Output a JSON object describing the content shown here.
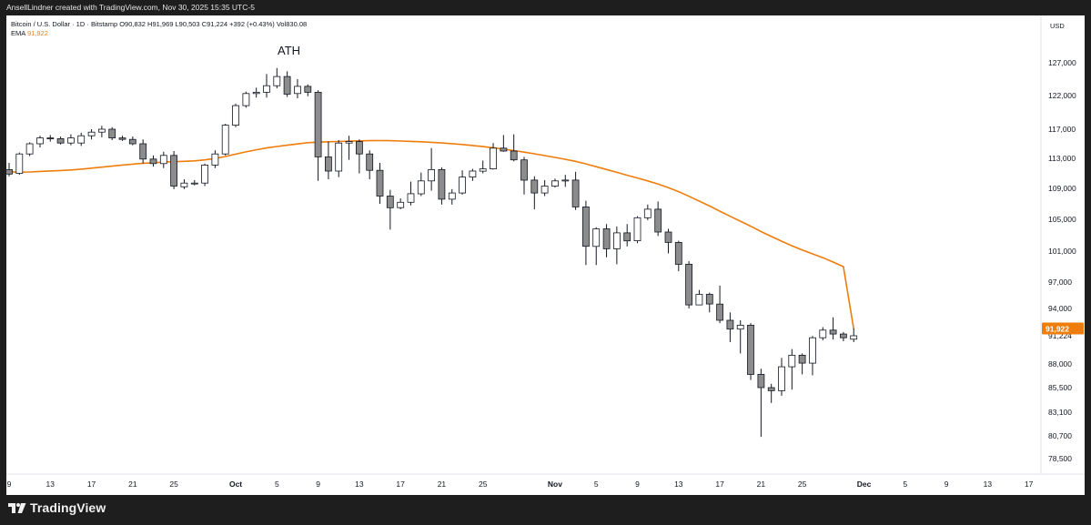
{
  "header": {
    "attribution": "AnsellLindner created with TradingView.com, Nov 30, 2025 15:35 UTC-5"
  },
  "legend": {
    "symbol_line": "Bitcoin / U.S. Dollar · 1D · Bitstamp  O90,832  H91,969  L90,503  C91,224  +392 (+0.43%)  Vol830.08",
    "ema_label": "EMA",
    "ema_value": "91,922"
  },
  "annotation": {
    "ath": "ATH"
  },
  "footer": {
    "logo_text": "TradingView"
  },
  "colors": {
    "bull_body": "#ffffff",
    "bear_body": "#8c8c8c",
    "candle_border": "#131722",
    "ema_line": "#ef7d0c",
    "last_price_badge": "#131722"
  },
  "chart_data": {
    "type": "candlestick",
    "title": "Bitcoin / U.S. Dollar · 1D · Bitstamp",
    "currency_label": "USD",
    "y_ticks": [
      127000,
      122000,
      117000,
      113000,
      109000,
      105000,
      101000,
      97000,
      94000,
      91224,
      88000,
      85500,
      83100,
      80700,
      78500
    ],
    "y_tick_labels": [
      "127,000",
      "122,000",
      "117,000",
      "113,000",
      "109,000",
      "105,000",
      "101,000",
      "97,000",
      "94,000",
      "91,224",
      "88,000",
      "85,500",
      "83,100",
      "80,700",
      "78,500"
    ],
    "x_tick_labels": [
      {
        "label": "9",
        "day": 0
      },
      {
        "label": "13",
        "day": 4
      },
      {
        "label": "17",
        "day": 8
      },
      {
        "label": "21",
        "day": 12
      },
      {
        "label": "25",
        "day": 16
      },
      {
        "label": "Oct",
        "day": 22,
        "bold": true
      },
      {
        "label": "5",
        "day": 26
      },
      {
        "label": "9",
        "day": 30
      },
      {
        "label": "13",
        "day": 34
      },
      {
        "label": "17",
        "day": 38
      },
      {
        "label": "21",
        "day": 42
      },
      {
        "label": "25",
        "day": 46
      },
      {
        "label": "Nov",
        "day": 53,
        "bold": true
      },
      {
        "label": "5",
        "day": 57
      },
      {
        "label": "9",
        "day": 61
      },
      {
        "label": "13",
        "day": 65
      },
      {
        "label": "17",
        "day": 69
      },
      {
        "label": "21",
        "day": 73
      },
      {
        "label": "25",
        "day": 77
      },
      {
        "label": "Dec",
        "day": 83,
        "bold": true
      },
      {
        "label": "5",
        "day": 87
      },
      {
        "label": "9",
        "day": 91
      },
      {
        "label": "13",
        "day": 95
      },
      {
        "label": "17",
        "day": 99
      }
    ],
    "last_close": 91224,
    "ema_last": 91922,
    "ema_last_label": "91,922",
    "ohlc": [
      [
        111500,
        112400,
        110600,
        110900
      ],
      [
        111000,
        113800,
        110800,
        113600
      ],
      [
        113600,
        115200,
        113300,
        115000
      ],
      [
        115000,
        116100,
        114500,
        115800
      ],
      [
        115800,
        116200,
        115300,
        115700
      ],
      [
        115700,
        116000,
        114900,
        115100
      ],
      [
        115100,
        116300,
        114800,
        115800
      ],
      [
        115100,
        116500,
        114700,
        116100
      ],
      [
        116100,
        117000,
        115600,
        116600
      ],
      [
        116600,
        117500,
        115900,
        117000
      ],
      [
        117000,
        117300,
        115500,
        115800
      ],
      [
        115800,
        116100,
        115400,
        115600
      ],
      [
        115600,
        116000,
        114800,
        115000
      ],
      [
        115000,
        115600,
        112300,
        112900
      ],
      [
        112900,
        113400,
        111900,
        112300
      ],
      [
        112300,
        113900,
        111700,
        113400
      ],
      [
        113400,
        114000,
        108900,
        109300
      ],
      [
        109200,
        110200,
        108900,
        109700
      ],
      [
        109700,
        110100,
        109400,
        109700
      ],
      [
        109700,
        112300,
        109300,
        112100
      ],
      [
        112100,
        114100,
        111700,
        113600
      ],
      [
        113600,
        117800,
        113400,
        117600
      ],
      [
        117600,
        120800,
        117300,
        120500
      ],
      [
        120500,
        122600,
        120200,
        122300
      ],
      [
        122300,
        123200,
        121700,
        122500
      ],
      [
        122500,
        125300,
        121700,
        123500
      ],
      [
        123500,
        126200,
        123100,
        124900
      ],
      [
        124900,
        125700,
        121800,
        122200
      ],
      [
        122300,
        124500,
        121600,
        123400
      ],
      [
        123400,
        123700,
        121900,
        122500
      ],
      [
        122500,
        122800,
        110000,
        113200
      ],
      [
        113200,
        115300,
        110200,
        111300
      ],
      [
        111300,
        115500,
        110500,
        115100
      ],
      [
        115100,
        116100,
        112800,
        115300
      ],
      [
        115300,
        115600,
        111000,
        113600
      ],
      [
        113600,
        114100,
        110200,
        111400
      ],
      [
        111400,
        112400,
        107000,
        108000
      ],
      [
        108000,
        108800,
        103700,
        106500
      ],
      [
        106500,
        107700,
        106300,
        107200
      ],
      [
        107200,
        109900,
        106800,
        108300
      ],
      [
        108300,
        111100,
        108000,
        110000
      ],
      [
        110000,
        114400,
        108700,
        111500
      ],
      [
        111500,
        111800,
        106900,
        107600
      ],
      [
        107600,
        108900,
        106900,
        108400
      ],
      [
        108400,
        111400,
        108200,
        110500
      ],
      [
        110500,
        111600,
        110000,
        111300
      ],
      [
        111300,
        112700,
        111000,
        111600
      ],
      [
        111600,
        115100,
        111500,
        114400
      ],
      [
        114400,
        116200,
        113900,
        114000
      ],
      [
        114000,
        116300,
        112600,
        112800
      ],
      [
        112800,
        113200,
        108200,
        110100
      ],
      [
        110100,
        110600,
        106300,
        108400
      ],
      [
        108400,
        110100,
        108000,
        109300
      ],
      [
        109300,
        110300,
        109100,
        110000
      ],
      [
        110000,
        110800,
        109200,
        110100
      ],
      [
        110100,
        111200,
        106200,
        106600
      ],
      [
        106600,
        107400,
        99200,
        101600
      ],
      [
        101600,
        104000,
        99200,
        103800
      ],
      [
        103800,
        104400,
        100200,
        101300
      ],
      [
        101300,
        104100,
        99300,
        103300
      ],
      [
        103300,
        104400,
        101600,
        102300
      ],
      [
        102300,
        105400,
        102000,
        105200
      ],
      [
        105200,
        106900,
        104900,
        106300
      ],
      [
        106300,
        107300,
        102900,
        103400
      ],
      [
        103400,
        103800,
        100700,
        102100
      ],
      [
        102100,
        102300,
        98400,
        99300
      ],
      [
        99300,
        99700,
        94000,
        94400
      ],
      [
        94400,
        96100,
        94400,
        95600
      ],
      [
        95600,
        95800,
        93600,
        94500
      ],
      [
        94500,
        96600,
        92500,
        92800
      ],
      [
        92800,
        93600,
        90500,
        91900
      ],
      [
        91900,
        92800,
        89200,
        92300
      ],
      [
        92300,
        92500,
        86300,
        86900
      ],
      [
        86900,
        87500,
        80600,
        85500
      ],
      [
        85500,
        85900,
        84000,
        85200
      ],
      [
        85200,
        88700,
        84700,
        87700
      ],
      [
        87700,
        89700,
        85300,
        89000
      ],
      [
        89000,
        89200,
        86900,
        88100
      ],
      [
        88100,
        91200,
        86800,
        91000
      ],
      [
        91000,
        92100,
        90700,
        91800
      ],
      [
        91800,
        93100,
        90800,
        91400
      ],
      [
        91400,
        91600,
        90600,
        91000
      ],
      [
        90832,
        91969,
        90503,
        91224
      ]
    ],
    "ema": [
      111200,
      111150,
      111180,
      111250,
      111320,
      111380,
      111450,
      111560,
      111690,
      111830,
      111960,
      112100,
      112230,
      112340,
      112410,
      112500,
      112550,
      112600,
      112660,
      112800,
      112980,
      113250,
      113570,
      113890,
      114180,
      114420,
      114630,
      114800,
      114970,
      115150,
      115220,
      115270,
      115310,
      115360,
      115400,
      115430,
      115440,
      115420,
      115380,
      115320,
      115270,
      115200,
      115110,
      115010,
      114900,
      114760,
      114610,
      114450,
      114260,
      114060,
      113850,
      113620,
      113380,
      113130,
      112870,
      112600,
      112260,
      111890,
      111510,
      111130,
      110750,
      110380,
      110000,
      109580,
      109100,
      108580,
      107980,
      107350,
      106720,
      106050,
      105390,
      104760,
      104130,
      103460,
      102840,
      102250,
      101680,
      101150,
      100650,
      100150,
      99590,
      98990,
      91922
    ],
    "date_range": "Sep 9 – Nov 30"
  }
}
